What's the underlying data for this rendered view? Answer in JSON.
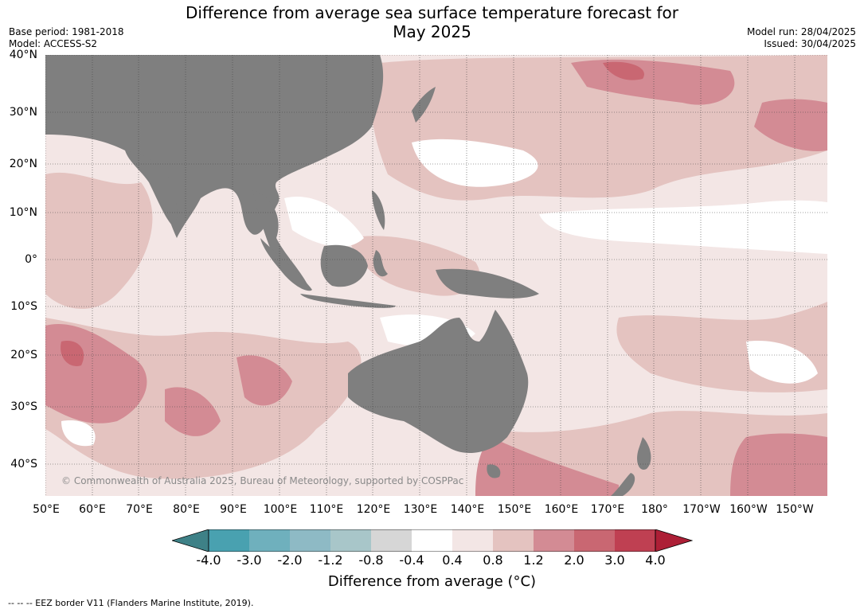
{
  "title": "Difference from average sea surface temperature forecast for May 2025",
  "title_line1": "Difference from average sea surface temperature forecast for",
  "title_line2": "May 2025",
  "meta_left": {
    "base_period": "Base period: 1981-2018",
    "model": "Model: ACCESS-S2"
  },
  "meta_right": {
    "model_run": "Model run: 28/04/2025",
    "issued": "Issued: 30/04/2025"
  },
  "lat_labels": [
    "40°N",
    "30°N",
    "20°N",
    "10°N",
    "0°",
    "10°S",
    "20°S",
    "30°S",
    "40°S"
  ],
  "lon_labels": [
    "50°E",
    "60°E",
    "70°E",
    "80°E",
    "90°E",
    "100°E",
    "110°E",
    "120°E",
    "130°E",
    "140°E",
    "150°E",
    "160°E",
    "170°E",
    "180°",
    "170°W",
    "160°W",
    "150°W"
  ],
  "copyright": "© Commonwealth of Australia 2025, Bureau of Meteorology, supported by COSPPac",
  "colorbar": {
    "ticks": [
      "-4.0",
      "-3.0",
      "-2.0",
      "-1.2",
      "-0.8",
      "-0.4",
      "0.4",
      "0.8",
      "1.2",
      "2.0",
      "3.0",
      "4.0"
    ],
    "colors": [
      "#3e8187",
      "#49a1b0",
      "#6fb0bd",
      "#8ebac5",
      "#a8c6c9",
      "#d6d6d6",
      "#ffffff",
      "#f3e6e5",
      "#e4c3c0",
      "#d38b94",
      "#c96772",
      "#bf4052",
      "#ad1f36"
    ],
    "label": "Difference from average (°C)"
  },
  "land_color": "#7f7f7f",
  "footer": "--  --  -- EEZ border V11 (Flanders Marine Institute, 2019)."
}
